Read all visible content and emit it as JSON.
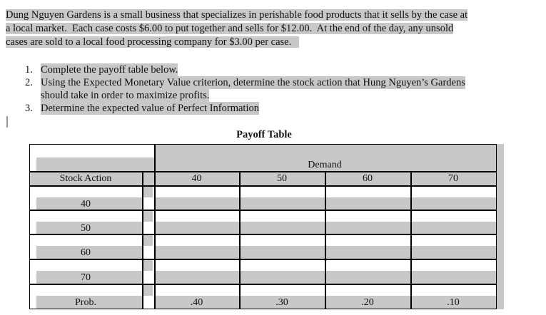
{
  "intro": [
    "Dung Nguyen Gardens is a small business that specializes in perishable food products that it sells by the case at",
    "a local market.  Each case costs $6.00 to put together and sells for $12.00.  At the end of the day, any unsold",
    "cases are sold to a local food processing company for $3.00 per case."
  ],
  "questions": [
    {
      "num": "1.",
      "lines": [
        "Complete the payoff table below."
      ]
    },
    {
      "num": "2.",
      "lines": [
        "Using the Expected Monetary Value criterion, determine the stock action that Hung Nguyen’s Gardens",
        "should take in order to maximize profits."
      ]
    },
    {
      "num": "3.",
      "lines": [
        "Determine the expected value of Perfect Information"
      ]
    }
  ],
  "table": {
    "title": "Payoff Table",
    "demand_label": "Demand",
    "row_header": "Stock Action",
    "demand_values": [
      "40",
      "50",
      "60",
      "70"
    ],
    "stock_actions": [
      "40",
      "50",
      "60",
      "70"
    ],
    "prob_label": "Prob.",
    "probabilities": [
      ".40",
      ".30",
      ".20",
      ".10"
    ]
  },
  "colors": {
    "highlight": "#c8c8c8"
  }
}
